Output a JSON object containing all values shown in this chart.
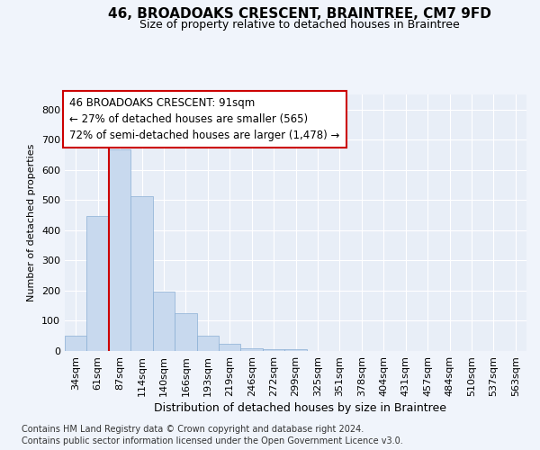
{
  "title1": "46, BROADOAKS CRESCENT, BRAINTREE, CM7 9FD",
  "title2": "Size of property relative to detached houses in Braintree",
  "xlabel": "Distribution of detached houses by size in Braintree",
  "ylabel": "Number of detached properties",
  "footer1": "Contains HM Land Registry data © Crown copyright and database right 2024.",
  "footer2": "Contains public sector information licensed under the Open Government Licence v3.0.",
  "categories": [
    "34sqm",
    "61sqm",
    "87sqm",
    "114sqm",
    "140sqm",
    "166sqm",
    "193sqm",
    "219sqm",
    "246sqm",
    "272sqm",
    "299sqm",
    "325sqm",
    "351sqm",
    "378sqm",
    "404sqm",
    "431sqm",
    "457sqm",
    "484sqm",
    "510sqm",
    "537sqm",
    "563sqm"
  ],
  "values": [
    50,
    447,
    667,
    514,
    197,
    126,
    50,
    25,
    10,
    5,
    7,
    0,
    0,
    0,
    0,
    0,
    0,
    0,
    0,
    0,
    0
  ],
  "bar_color": "#c8d9ee",
  "bar_edge_color": "#8aafd4",
  "highlight_bar_index": 2,
  "highlight_color": "#cc0000",
  "annotation_title": "46 BROADOAKS CRESCENT: 91sqm",
  "annotation_line1": "← 27% of detached houses are smaller (565)",
  "annotation_line2": "72% of semi-detached houses are larger (1,478) →",
  "annotation_box_color": "#ffffff",
  "annotation_box_edge": "#cc0000",
  "ylim": [
    0,
    850
  ],
  "yticks": [
    0,
    100,
    200,
    300,
    400,
    500,
    600,
    700,
    800
  ],
  "bg_color": "#f0f4fb",
  "plot_bg_color": "#e8eef7",
  "grid_color": "#ffffff",
  "title1_fontsize": 11,
  "title2_fontsize": 9,
  "ylabel_fontsize": 8,
  "xlabel_fontsize": 9,
  "tick_fontsize": 8,
  "ann_fontsize": 8.5,
  "footer_fontsize": 7
}
